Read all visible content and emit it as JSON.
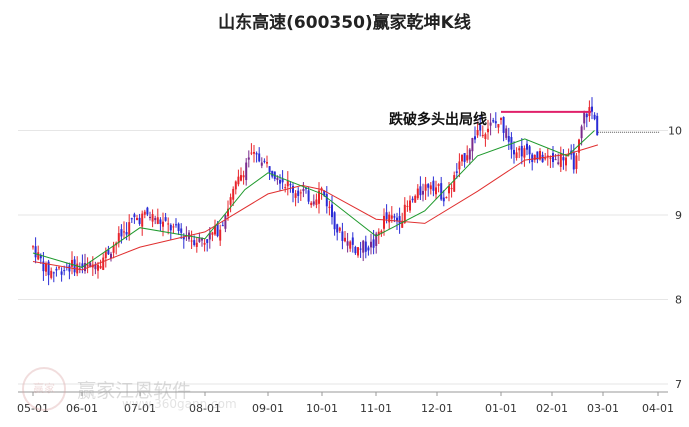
{
  "title": "山东高速(600350)赢家乾坤K线",
  "watermark": {
    "name": "赢家江恩软件",
    "url": "www.360gann.com",
    "logo_text": "赢家"
  },
  "colors": {
    "up": "#e8242b",
    "down": "#2a2cd6",
    "neutral": "#7a2a8c",
    "ma_short": "#1f9a2d",
    "ma_long": "#e03030",
    "marker": "#e0206a"
  },
  "annotation": {
    "text": "跌破多头出局线"
  },
  "chart_data": {
    "type": "candlestick",
    "title": "山东高速(600350)赢家乾坤K线",
    "y_ticks": [
      7,
      8,
      9,
      10
    ],
    "ylim": [
      7,
      10.65
    ],
    "x_ticks": [
      "05-01",
      "06-01",
      "07-01",
      "08-01",
      "09-01",
      "10-01",
      "11-01",
      "12-01",
      "01-01",
      "02-01",
      "03-01",
      "04-01"
    ],
    "price_path": [
      [
        "05-01",
        8.62
      ],
      [
        "05-10",
        8.32
      ],
      [
        "05-25",
        8.4
      ],
      [
        "06-05",
        8.38
      ],
      [
        "06-12",
        8.5
      ],
      [
        "06-20",
        8.72
      ],
      [
        "06-28",
        8.95
      ],
      [
        "07-05",
        9.0
      ],
      [
        "07-15",
        8.85
      ],
      [
        "07-25",
        8.72
      ],
      [
        "08-01",
        8.7
      ],
      [
        "08-08",
        8.85
      ],
      [
        "08-15",
        9.3
      ],
      [
        "08-22",
        9.7
      ],
      [
        "08-28",
        9.65
      ],
      [
        "09-05",
        9.5
      ],
      [
        "09-15",
        9.3
      ],
      [
        "09-25",
        9.2
      ],
      [
        "10-01",
        9.3
      ],
      [
        "10-10",
        8.8
      ],
      [
        "10-20",
        8.6
      ],
      [
        "10-30",
        8.65
      ],
      [
        "11-05",
        8.95
      ],
      [
        "11-12",
        8.95
      ],
      [
        "11-20",
        9.2
      ],
      [
        "11-28",
        9.4
      ],
      [
        "12-05",
        9.2
      ],
      [
        "12-12",
        9.6
      ],
      [
        "12-20",
        10.0
      ],
      [
        "12-31",
        10.1
      ],
      [
        "01-08",
        9.8
      ],
      [
        "01-20",
        9.7
      ],
      [
        "01-31",
        9.65
      ],
      [
        "02-08",
        9.7
      ],
      [
        "02-15",
        9.6
      ],
      [
        "02-20",
        10.2
      ],
      [
        "02-24",
        10.25
      ],
      [
        "02-28",
        9.98
      ]
    ],
    "ma_short": [
      [
        "05-01",
        8.55
      ],
      [
        "06-01",
        8.38
      ],
      [
        "07-01",
        8.85
      ],
      [
        "08-01",
        8.72
      ],
      [
        "08-20",
        9.3
      ],
      [
        "09-01",
        9.5
      ],
      [
        "10-01",
        9.25
      ],
      [
        "11-01",
        8.75
      ],
      [
        "11-25",
        9.05
      ],
      [
        "12-20",
        9.7
      ],
      [
        "01-15",
        9.9
      ],
      [
        "02-10",
        9.7
      ],
      [
        "02-26",
        10.0
      ]
    ],
    "ma_long": [
      [
        "05-01",
        8.45
      ],
      [
        "06-01",
        8.35
      ],
      [
        "07-01",
        8.62
      ],
      [
        "08-01",
        8.8
      ],
      [
        "09-01",
        9.25
      ],
      [
        "09-20",
        9.35
      ],
      [
        "10-01",
        9.3
      ],
      [
        "11-01",
        8.95
      ],
      [
        "11-25",
        8.9
      ],
      [
        "12-20",
        9.28
      ],
      [
        "01-15",
        9.65
      ],
      [
        "02-10",
        9.72
      ],
      [
        "02-28",
        9.83
      ]
    ],
    "marker_line": {
      "from": "01-01",
      "to": "02-24",
      "value": 10.22
    },
    "last_price_line": {
      "from": "02-28",
      "value": 9.98
    }
  }
}
